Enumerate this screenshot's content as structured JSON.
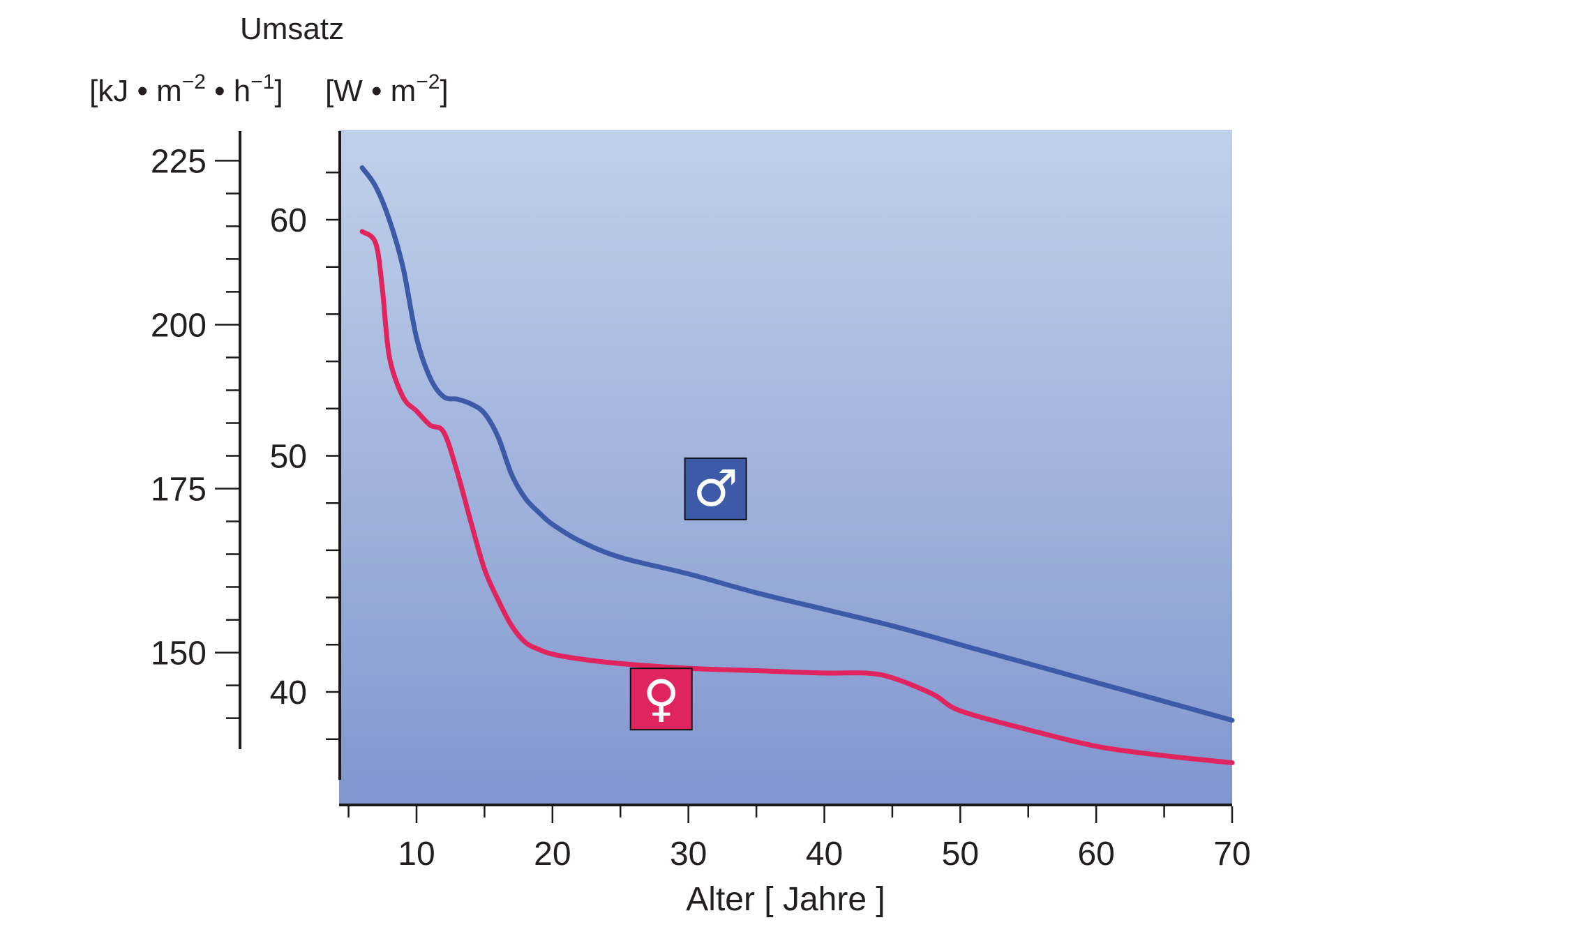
{
  "colors": {
    "bg_top": "#bccde9",
    "bg_bottom": "#8196cf",
    "male": "#3c5aa8",
    "female": "#e0245e",
    "axis": "#1a1a1a"
  },
  "chart_data": {
    "type": "line",
    "title": "Umsatz",
    "y_unit_left": {
      "prefix": "[kJ • m",
      "sup1": "−2",
      "mid": " • h",
      "sup2": "−1",
      "suffix": "]"
    },
    "y_unit_right": {
      "prefix": "[W • m",
      "sup1": "−2",
      "suffix": "]"
    },
    "xlabel": "Alter [ Jahre ]",
    "xlim": [
      5,
      70
    ],
    "xticks": [
      10,
      20,
      30,
      40,
      50,
      60,
      70
    ],
    "y_w": {
      "ylim": [
        36,
        64
      ],
      "ticks": [
        40,
        50,
        60
      ]
    },
    "y_kj": {
      "ticks": [
        150,
        175,
        200,
        225
      ]
    },
    "series": [
      {
        "symbol": "♂",
        "x": [
          6,
          7,
          8,
          9,
          10,
          11,
          12,
          13,
          14,
          15,
          16,
          17,
          18,
          19,
          20,
          22,
          25,
          30,
          35,
          40,
          45,
          50,
          55,
          60,
          65,
          70
        ],
        "y": [
          62.2,
          61.4,
          60.0,
          58.0,
          55.0,
          53.3,
          52.5,
          52.4,
          52.2,
          51.8,
          50.8,
          49.2,
          48.2,
          47.6,
          47.1,
          46.4,
          45.7,
          45.0,
          44.2,
          43.5,
          42.8,
          42.0,
          41.2,
          40.4,
          39.6,
          38.8
        ]
      },
      {
        "symbol": "♀",
        "x": [
          6,
          7,
          7.5,
          8,
          9,
          10,
          11,
          12,
          13,
          14,
          15,
          16,
          17,
          18,
          19,
          20,
          22,
          25,
          30,
          35,
          40,
          43,
          45,
          48,
          50,
          55,
          60,
          65,
          70
        ],
        "y": [
          59.5,
          59.0,
          57.0,
          54.2,
          52.5,
          51.9,
          51.3,
          51.0,
          49.3,
          47.2,
          45.2,
          43.9,
          42.8,
          42.1,
          41.8,
          41.6,
          41.4,
          41.2,
          41.0,
          40.9,
          40.8,
          40.8,
          40.6,
          39.9,
          39.2,
          38.4,
          37.7,
          37.3,
          37.0
        ]
      }
    ],
    "annotations": [
      {
        "symbol": "♂",
        "x": 32,
        "y": 48.6
      },
      {
        "symbol": "♀",
        "x": 28,
        "y": 39.7
      }
    ],
    "grid": false,
    "legend": "none"
  }
}
